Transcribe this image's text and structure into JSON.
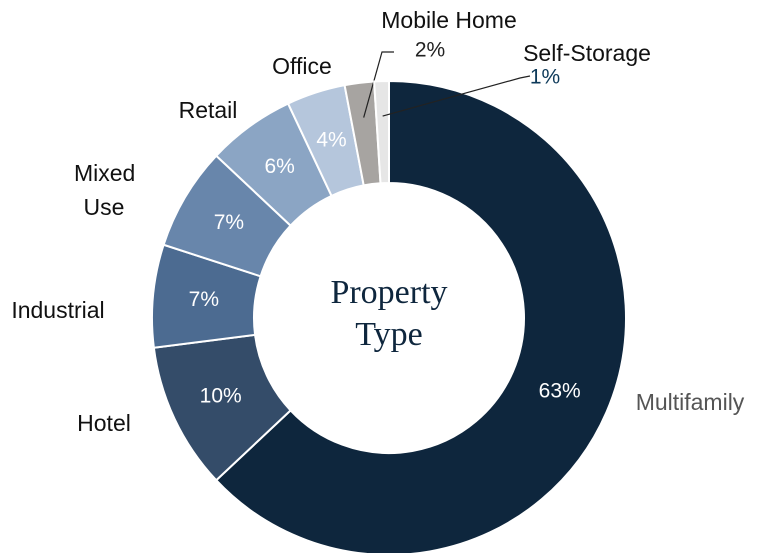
{
  "chart_data": {
    "type": "donut",
    "center_text": "Property Type",
    "categories": [
      "Multifamily",
      "Hotel",
      "Industrial",
      "Mixed Use",
      "Retail",
      "Office",
      "Mobile Home",
      "Self-Storage"
    ],
    "values": [
      63,
      10,
      7,
      7,
      6,
      4,
      2,
      1
    ],
    "value_labels": [
      "63%",
      "10%",
      "7%",
      "7%",
      "6%",
      "4%",
      "2%",
      "1%"
    ],
    "colors": [
      "#0e263d",
      "#344c69",
      "#4c6b91",
      "#6886ab",
      "#8ba5c4",
      "#b5c6dc",
      "#a7a4a1",
      "#e6e6e6"
    ]
  }
}
